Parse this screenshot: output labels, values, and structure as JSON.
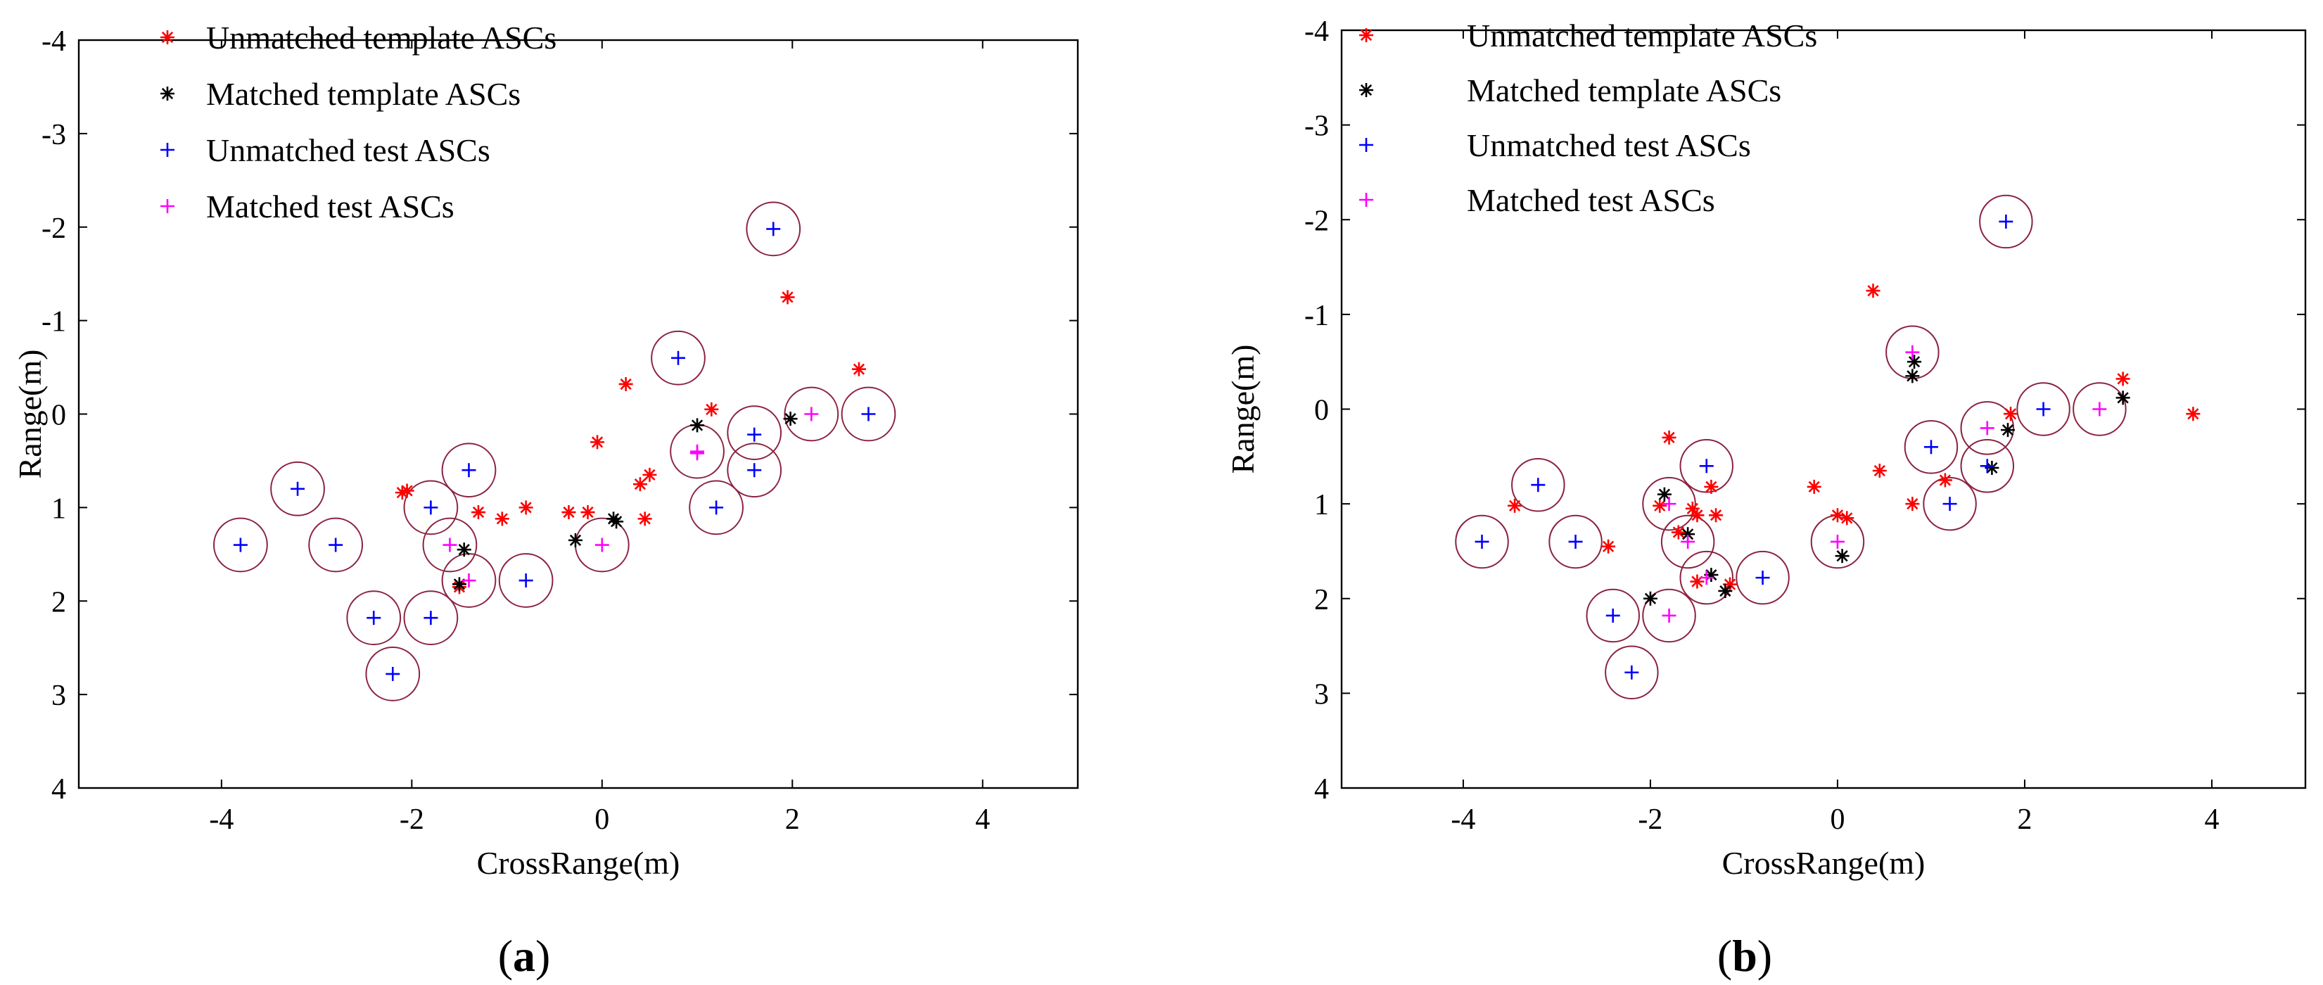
{
  "chart_data": [
    {
      "type": "scatter",
      "panel_label": "a",
      "xlabel": "CrossRange(m)",
      "ylabel": "Range(m)",
      "xlim": [
        -5.5,
        5
      ],
      "ylim": [
        4,
        -4
      ],
      "x_ticks": [
        -4,
        -2,
        0,
        2,
        4
      ],
      "y_ticks": [
        -4,
        -3,
        -2,
        -1,
        0,
        1,
        2,
        3,
        4
      ],
      "x_tick_labels": [
        "-4",
        "-2",
        "0",
        "2",
        "4"
      ],
      "y_tick_labels": [
        "-4",
        "-3",
        "-2",
        "-1",
        "0",
        "1",
        "2",
        "3",
        "4"
      ],
      "legend_location": "top-left",
      "circle_radius": 0.28,
      "series": [
        {
          "name": "Unmatched template ASCs",
          "marker": "asterisk",
          "color": "#ff0000",
          "points": [
            [
              1.95,
              -1.25
            ],
            [
              0.25,
              -0.32
            ],
            [
              2.7,
              -0.48
            ],
            [
              1.15,
              -0.05
            ],
            [
              -0.05,
              0.3
            ],
            [
              0.5,
              0.65
            ],
            [
              0.4,
              0.75
            ],
            [
              -2.05,
              0.82
            ],
            [
              -2.1,
              0.84
            ],
            [
              -0.8,
              1.0
            ],
            [
              -1.3,
              1.05
            ],
            [
              -0.35,
              1.05
            ],
            [
              -0.15,
              1.05
            ],
            [
              -1.05,
              1.12
            ],
            [
              0.45,
              1.12
            ],
            [
              -1.5,
              1.85
            ]
          ]
        },
        {
          "name": "Matched template ASCs",
          "marker": "asterisk",
          "color": "#000000",
          "points": [
            [
              1.0,
              0.12
            ],
            [
              1.98,
              0.05
            ],
            [
              0.12,
              1.12
            ],
            [
              0.15,
              1.15
            ],
            [
              -0.28,
              1.35
            ],
            [
              -1.45,
              1.45
            ],
            [
              -1.5,
              1.82
            ]
          ]
        },
        {
          "name": "Unmatched test ASCs",
          "marker": "plus",
          "color": "#0000ff",
          "points": [
            [
              1.8,
              -1.98
            ],
            [
              0.8,
              -0.6
            ],
            [
              1.6,
              0.22
            ],
            [
              2.8,
              0.0
            ],
            [
              1.6,
              0.6
            ],
            [
              -3.2,
              0.8
            ],
            [
              -1.4,
              0.6
            ],
            [
              -1.8,
              1.0
            ],
            [
              1.2,
              1.0
            ],
            [
              -3.8,
              1.4
            ],
            [
              -2.8,
              1.4
            ],
            [
              -0.8,
              1.78
            ],
            [
              -2.4,
              2.18
            ],
            [
              -1.8,
              2.18
            ],
            [
              -2.2,
              2.78
            ]
          ]
        },
        {
          "name": "Matched test ASCs",
          "marker": "plus",
          "color": "#ff00ff",
          "points": [
            [
              2.2,
              0.0
            ],
            [
              1.0,
              0.4
            ],
            [
              1.0,
              0.42
            ],
            [
              0.0,
              1.4
            ],
            [
              -1.6,
              1.4
            ],
            [
              -1.4,
              1.78
            ]
          ]
        }
      ],
      "circles": [
        [
          1.8,
          -1.98
        ],
        [
          0.8,
          -0.6
        ],
        [
          2.2,
          0.0
        ],
        [
          2.8,
          0.0
        ],
        [
          1.6,
          0.2
        ],
        [
          1.0,
          0.4
        ],
        [
          1.6,
          0.6
        ],
        [
          -3.2,
          0.8
        ],
        [
          -1.4,
          0.6
        ],
        [
          -1.8,
          1.0
        ],
        [
          1.2,
          1.0
        ],
        [
          -3.8,
          1.4
        ],
        [
          -2.8,
          1.4
        ],
        [
          -1.6,
          1.4
        ],
        [
          0.0,
          1.4
        ],
        [
          -1.4,
          1.78
        ],
        [
          -0.8,
          1.78
        ],
        [
          -2.4,
          2.18
        ],
        [
          -1.8,
          2.18
        ],
        [
          -2.2,
          2.78
        ]
      ]
    },
    {
      "type": "scatter",
      "panel_label": "b",
      "xlabel": "CrossRange(m)",
      "ylabel": "Range(m)",
      "xlim": [
        -5.3,
        5
      ],
      "ylim": [
        4,
        -4
      ],
      "x_ticks": [
        -4,
        -2,
        0,
        2,
        4
      ],
      "y_ticks": [
        -4,
        -3,
        -2,
        -1,
        0,
        1,
        2,
        3,
        4
      ],
      "x_tick_labels": [
        "-4",
        "-2",
        "0",
        "2",
        "4"
      ],
      "y_tick_labels": [
        "-4",
        "-3",
        "-2",
        "-1",
        "0",
        "1",
        "2",
        "3",
        "4"
      ],
      "legend_location": "top-left",
      "circle_radius": 0.28,
      "series": [
        {
          "name": "Unmatched template ASCs",
          "marker": "asterisk",
          "color": "#ff0000",
          "points": [
            [
              0.38,
              -1.25
            ],
            [
              3.05,
              -0.32
            ],
            [
              1.85,
              0.05
            ],
            [
              3.8,
              0.05
            ],
            [
              0.45,
              0.65
            ],
            [
              -1.8,
              0.3
            ],
            [
              -0.25,
              0.82
            ],
            [
              1.15,
              0.75
            ],
            [
              -1.35,
              0.82
            ],
            [
              -3.45,
              1.02
            ],
            [
              -1.9,
              1.02
            ],
            [
              -1.55,
              1.05
            ],
            [
              -1.5,
              1.12
            ],
            [
              -1.3,
              1.12
            ],
            [
              0.0,
              1.12
            ],
            [
              0.1,
              1.15
            ],
            [
              -1.7,
              1.3
            ],
            [
              -2.45,
              1.45
            ],
            [
              -1.5,
              1.82
            ],
            [
              -1.15,
              1.85
            ],
            [
              0.8,
              1.0
            ]
          ]
        },
        {
          "name": "Matched template ASCs",
          "marker": "asterisk",
          "color": "#000000",
          "points": [
            [
              0.82,
              -0.5
            ],
            [
              0.8,
              -0.35
            ],
            [
              3.05,
              -0.12
            ],
            [
              1.82,
              0.22
            ],
            [
              1.65,
              0.62
            ],
            [
              -1.85,
              0.9
            ],
            [
              -1.6,
              1.32
            ],
            [
              0.05,
              1.55
            ],
            [
              -1.35,
              1.75
            ],
            [
              -1.2,
              1.92
            ],
            [
              -2.0,
              2.0
            ]
          ]
        },
        {
          "name": "Unmatched test ASCs",
          "marker": "plus",
          "color": "#0000ff",
          "points": [
            [
              1.8,
              -1.98
            ],
            [
              2.2,
              0.0
            ],
            [
              1.0,
              0.4
            ],
            [
              1.6,
              0.6
            ],
            [
              -3.2,
              0.8
            ],
            [
              -1.4,
              0.6
            ],
            [
              1.2,
              1.0
            ],
            [
              -3.8,
              1.4
            ],
            [
              -2.8,
              1.4
            ],
            [
              -0.8,
              1.78
            ],
            [
              -2.4,
              2.18
            ],
            [
              -2.2,
              2.78
            ]
          ]
        },
        {
          "name": "Matched test ASCs",
          "marker": "plus",
          "color": "#ff00ff",
          "points": [
            [
              0.8,
              -0.6
            ],
            [
              2.8,
              0.0
            ],
            [
              1.6,
              0.2
            ],
            [
              -1.8,
              1.0
            ],
            [
              0.0,
              1.4
            ],
            [
              -1.6,
              1.4
            ],
            [
              -1.4,
              1.78
            ],
            [
              -1.8,
              2.18
            ]
          ]
        }
      ],
      "circles": [
        [
          1.8,
          -1.98
        ],
        [
          0.8,
          -0.6
        ],
        [
          2.2,
          0.0
        ],
        [
          2.8,
          0.0
        ],
        [
          1.6,
          0.2
        ],
        [
          1.0,
          0.4
        ],
        [
          1.6,
          0.6
        ],
        [
          -3.2,
          0.8
        ],
        [
          -1.4,
          0.6
        ],
        [
          -1.8,
          1.0
        ],
        [
          1.2,
          1.0
        ],
        [
          -3.8,
          1.4
        ],
        [
          -2.8,
          1.4
        ],
        [
          -1.6,
          1.4
        ],
        [
          0.0,
          1.4
        ],
        [
          -1.4,
          1.78
        ],
        [
          -0.8,
          1.78
        ],
        [
          -2.4,
          2.18
        ],
        [
          -1.8,
          2.18
        ],
        [
          -2.2,
          2.78
        ]
      ]
    }
  ]
}
